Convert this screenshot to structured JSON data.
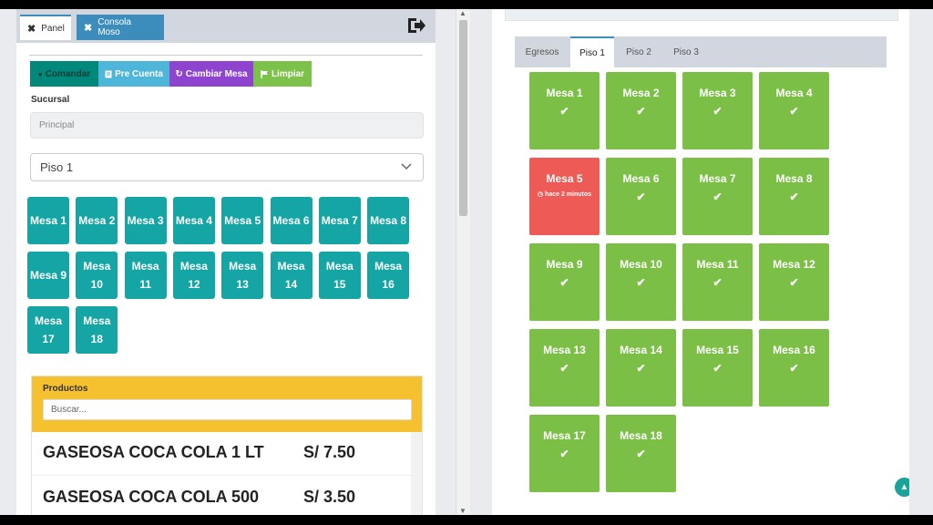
{
  "tabs": {
    "panel": "Panel",
    "consola": "Consola Moso",
    "close_glyph": "✖"
  },
  "toolbar": {
    "comandar": "Comandar",
    "pre_cuenta": "Pre Cuenta",
    "cambiar_mesa": "Cambiar Mesa",
    "limpiar": "Limpiar"
  },
  "form": {
    "sucursal_label": "Sucursal",
    "sucursal_value": "Principal",
    "piso_selected": "Piso 1"
  },
  "left_mesas": [
    "Mesa 1",
    "Mesa 2",
    "Mesa 3",
    "Mesa 4",
    "Mesa 5",
    "Mesa 6",
    "Mesa 7",
    "Mesa 8",
    "Mesa 9",
    "Mesa 10",
    "Mesa 11",
    "Mesa 12",
    "Mesa 13",
    "Mesa 14",
    "Mesa 15",
    "Mesa 16",
    "Mesa 17",
    "Mesa 18"
  ],
  "productos": {
    "title": "Productos",
    "search_placeholder": "Buscar...",
    "items": [
      {
        "name": "GASEOSA COCA COLA 1 LT",
        "price": "S/ 7.50"
      },
      {
        "name": "GASEOSA COCA COLA 500",
        "price": "S/ 3.50"
      }
    ]
  },
  "floor_tabs": [
    "Egresos",
    "Piso 1",
    "Piso 2",
    "Piso 3"
  ],
  "active_floor": "Piso 1",
  "right_mesas": [
    {
      "name": "Mesa 1",
      "status": "free"
    },
    {
      "name": "Mesa 2",
      "status": "free"
    },
    {
      "name": "Mesa 3",
      "status": "free"
    },
    {
      "name": "Mesa 4",
      "status": "free"
    },
    {
      "name": "Mesa 5",
      "status": "busy",
      "time": "hace 2 minutos"
    },
    {
      "name": "Mesa 6",
      "status": "free"
    },
    {
      "name": "Mesa 7",
      "status": "free"
    },
    {
      "name": "Mesa 8",
      "status": "free"
    },
    {
      "name": "Mesa 9",
      "status": "free"
    },
    {
      "name": "Mesa 10",
      "status": "free"
    },
    {
      "name": "Mesa 11",
      "status": "free"
    },
    {
      "name": "Mesa 12",
      "status": "free"
    },
    {
      "name": "Mesa 13",
      "status": "free"
    },
    {
      "name": "Mesa 14",
      "status": "free"
    },
    {
      "name": "Mesa 15",
      "status": "free"
    },
    {
      "name": "Mesa 16",
      "status": "free"
    },
    {
      "name": "Mesa 17",
      "status": "free"
    },
    {
      "name": "Mesa 18",
      "status": "free"
    }
  ],
  "colors": {
    "teal": "#15a5a5",
    "free": "#7cbf46",
    "busy": "#ee5a55",
    "productos_header": "#f5c12e",
    "active_tab": "#3c8dbc"
  },
  "icons": {
    "check": "✔",
    "clock": "◷",
    "scroll_top": "▲"
  }
}
